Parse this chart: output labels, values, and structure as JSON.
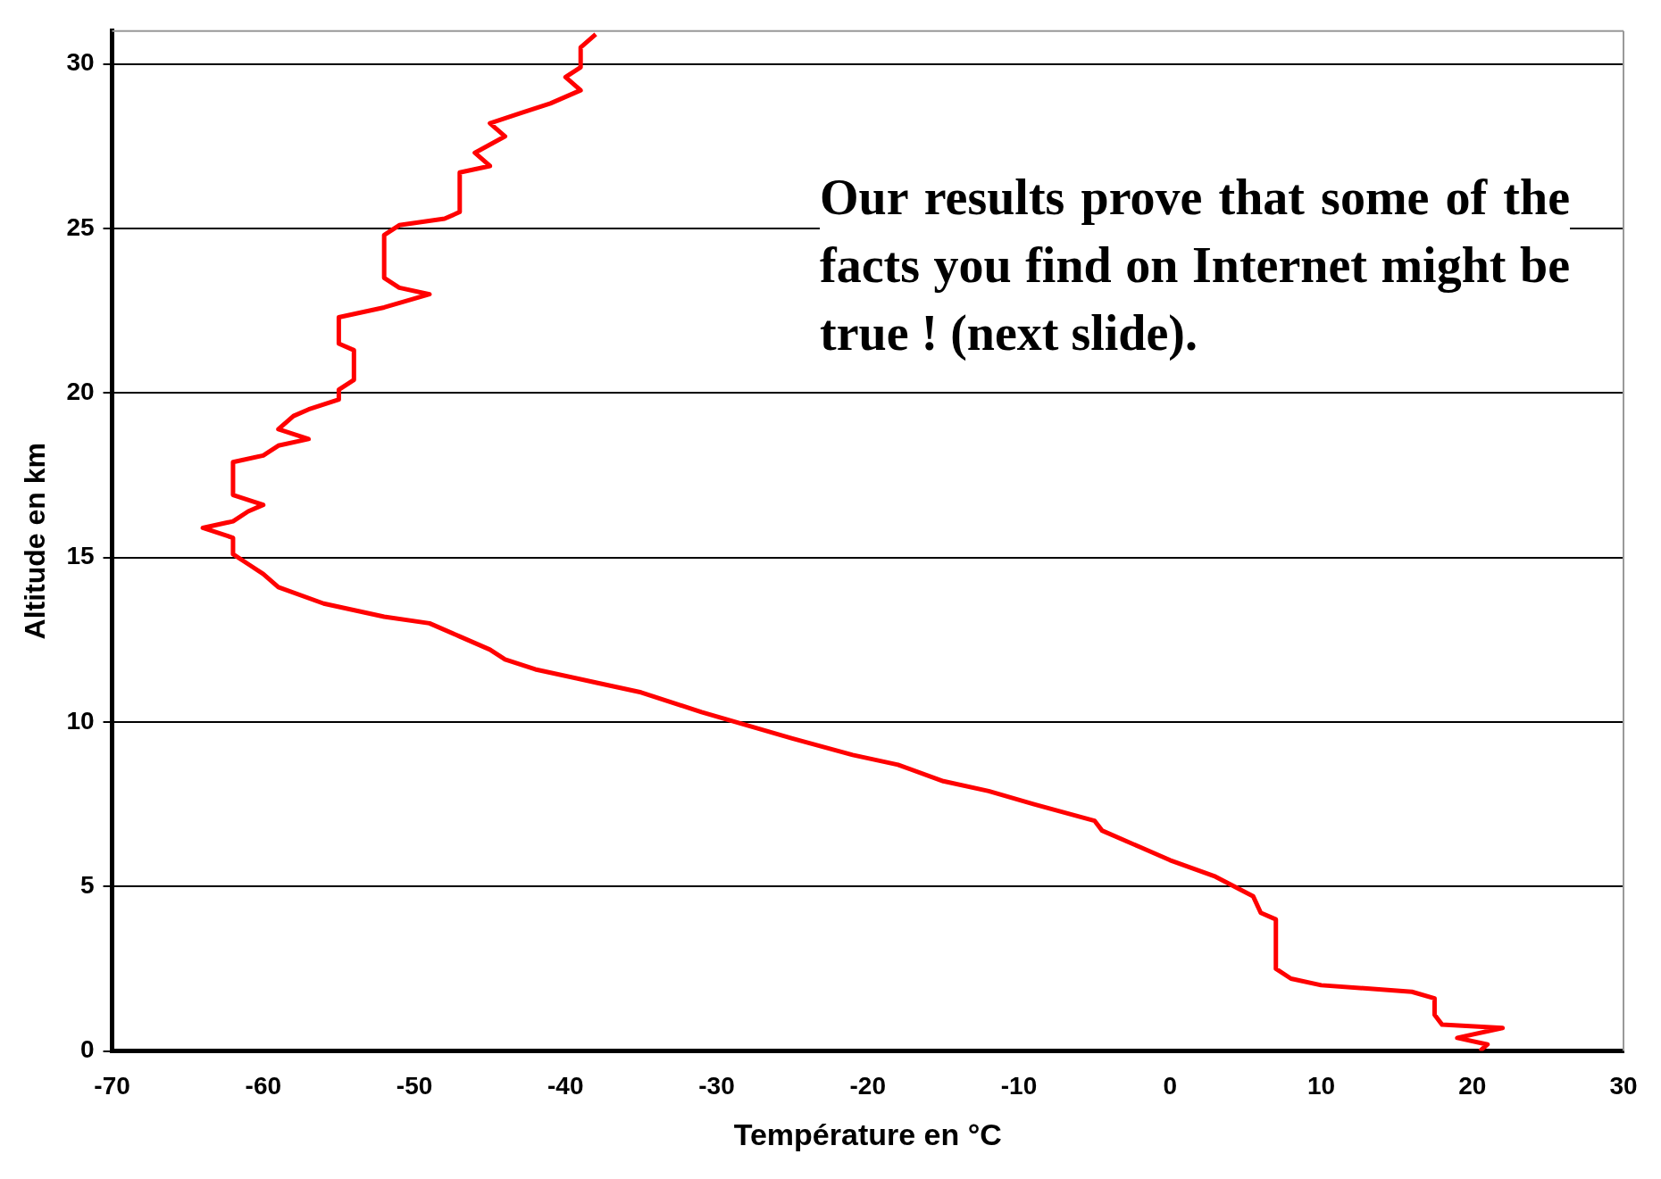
{
  "chart_data": {
    "type": "line",
    "xlabel": "Température en °C",
    "ylabel": "Altitude en km",
    "xlim": [
      -70,
      30
    ],
    "xticks": [
      -70,
      -60,
      -50,
      -40,
      -30,
      -20,
      -10,
      0,
      10,
      20,
      30
    ],
    "ylim": [
      0,
      31
    ],
    "yticks": [
      0,
      5,
      10,
      15,
      20,
      25,
      30
    ],
    "grid": "y",
    "legend": false,
    "marker": "none",
    "line_style": "solid",
    "series": [
      {
        "color": "#ff0000",
        "x": [
          20.5,
          21,
          19,
          22,
          18,
          17.5,
          17.5,
          16,
          10,
          8,
          7,
          7,
          6,
          5.5,
          3,
          0,
          -2,
          -4.5,
          -5,
          -9,
          -12,
          -15,
          -18,
          -21,
          -25,
          -28,
          -31,
          -33,
          -35,
          -38,
          -42,
          -44,
          -45,
          -47,
          -49,
          -52,
          -56,
          -59,
          -60,
          -61,
          -62,
          -62,
          -64,
          -62,
          -61,
          -60,
          -62,
          -62,
          -60,
          -59,
          -57,
          -59,
          -58,
          -57,
          -55,
          -55,
          -54,
          -54,
          -55,
          -55,
          -52,
          -49,
          -51,
          -52,
          -52,
          -51,
          -48,
          -47,
          -47,
          -45,
          -46,
          -44,
          -45,
          -43,
          -41,
          -39,
          -40,
          -39,
          -39,
          -38
        ],
        "values": [
          0,
          0.2,
          0.4,
          0.7,
          0.8,
          1.1,
          1.6,
          1.8,
          2.0,
          2.2,
          2.5,
          4.0,
          4.2,
          4.7,
          5.3,
          5.8,
          6.2,
          6.7,
          7.0,
          7.5,
          7.9,
          8.2,
          8.7,
          9.0,
          9.5,
          9.9,
          10.3,
          10.6,
          10.9,
          11.2,
          11.6,
          11.9,
          12.2,
          12.6,
          13.0,
          13.2,
          13.6,
          14.1,
          14.5,
          14.8,
          15.1,
          15.6,
          15.9,
          16.1,
          16.4,
          16.6,
          16.9,
          17.9,
          18.1,
          18.4,
          18.6,
          18.9,
          19.3,
          19.5,
          19.8,
          20.1,
          20.4,
          21.3,
          21.5,
          22.3,
          22.6,
          23.0,
          23.2,
          23.5,
          24.8,
          25.1,
          25.3,
          25.5,
          26.7,
          26.9,
          27.3,
          27.8,
          28.2,
          28.5,
          28.8,
          29.2,
          29.6,
          29.9,
          30.5,
          30.9
        ]
      }
    ],
    "annotations": [
      "Our results prove that some of the facts you find on Internet might be true ! (next slide)."
    ]
  }
}
